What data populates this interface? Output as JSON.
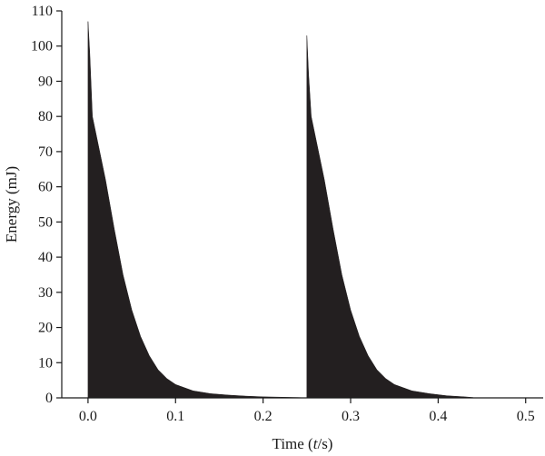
{
  "chart_data": {
    "type": "area",
    "title": "",
    "xlabel": {
      "prefix": "Time (",
      "var": "t",
      "suffix": "/s)"
    },
    "ylabel": "Energy (mJ)",
    "xlim": [
      -0.03,
      0.52
    ],
    "ylim": [
      0,
      110
    ],
    "xticks": [
      0.0,
      0.1,
      0.2,
      0.3,
      0.4,
      0.5
    ],
    "xtick_labels": [
      "0.0",
      "0.1",
      "0.2",
      "0.3",
      "0.4",
      "0.5"
    ],
    "yticks": [
      0,
      10,
      20,
      30,
      40,
      50,
      60,
      70,
      80,
      90,
      100,
      110
    ],
    "ytick_labels": [
      "0",
      "10",
      "20",
      "30",
      "40",
      "50",
      "60",
      "70",
      "80",
      "90",
      "100",
      "110"
    ],
    "grid": false,
    "series": [
      {
        "color": "#231f20",
        "x": [
          0.0,
          0.002,
          0.005,
          0.01,
          0.02,
          0.03,
          0.04,
          0.05,
          0.06,
          0.07,
          0.08,
          0.09,
          0.1,
          0.12,
          0.14,
          0.16,
          0.18,
          0.2,
          0.22,
          0.24,
          0.25
        ],
        "y": [
          107,
          98,
          80,
          74,
          62,
          48,
          35,
          25,
          17.5,
          12,
          8,
          5.5,
          3.8,
          2,
          1.2,
          0.8,
          0.5,
          0.3,
          0.2,
          0.1,
          0
        ]
      },
      {
        "color": "#231f20",
        "x": [
          0.25,
          0.252,
          0.255,
          0.26,
          0.27,
          0.28,
          0.29,
          0.3,
          0.31,
          0.32,
          0.33,
          0.34,
          0.35,
          0.37,
          0.39,
          0.41,
          0.43,
          0.44
        ],
        "y": [
          103,
          92,
          80,
          74,
          62,
          48,
          35,
          25,
          17.5,
          12,
          8,
          5.5,
          3.8,
          2,
          1.2,
          0.6,
          0.3,
          0.1
        ]
      }
    ]
  }
}
